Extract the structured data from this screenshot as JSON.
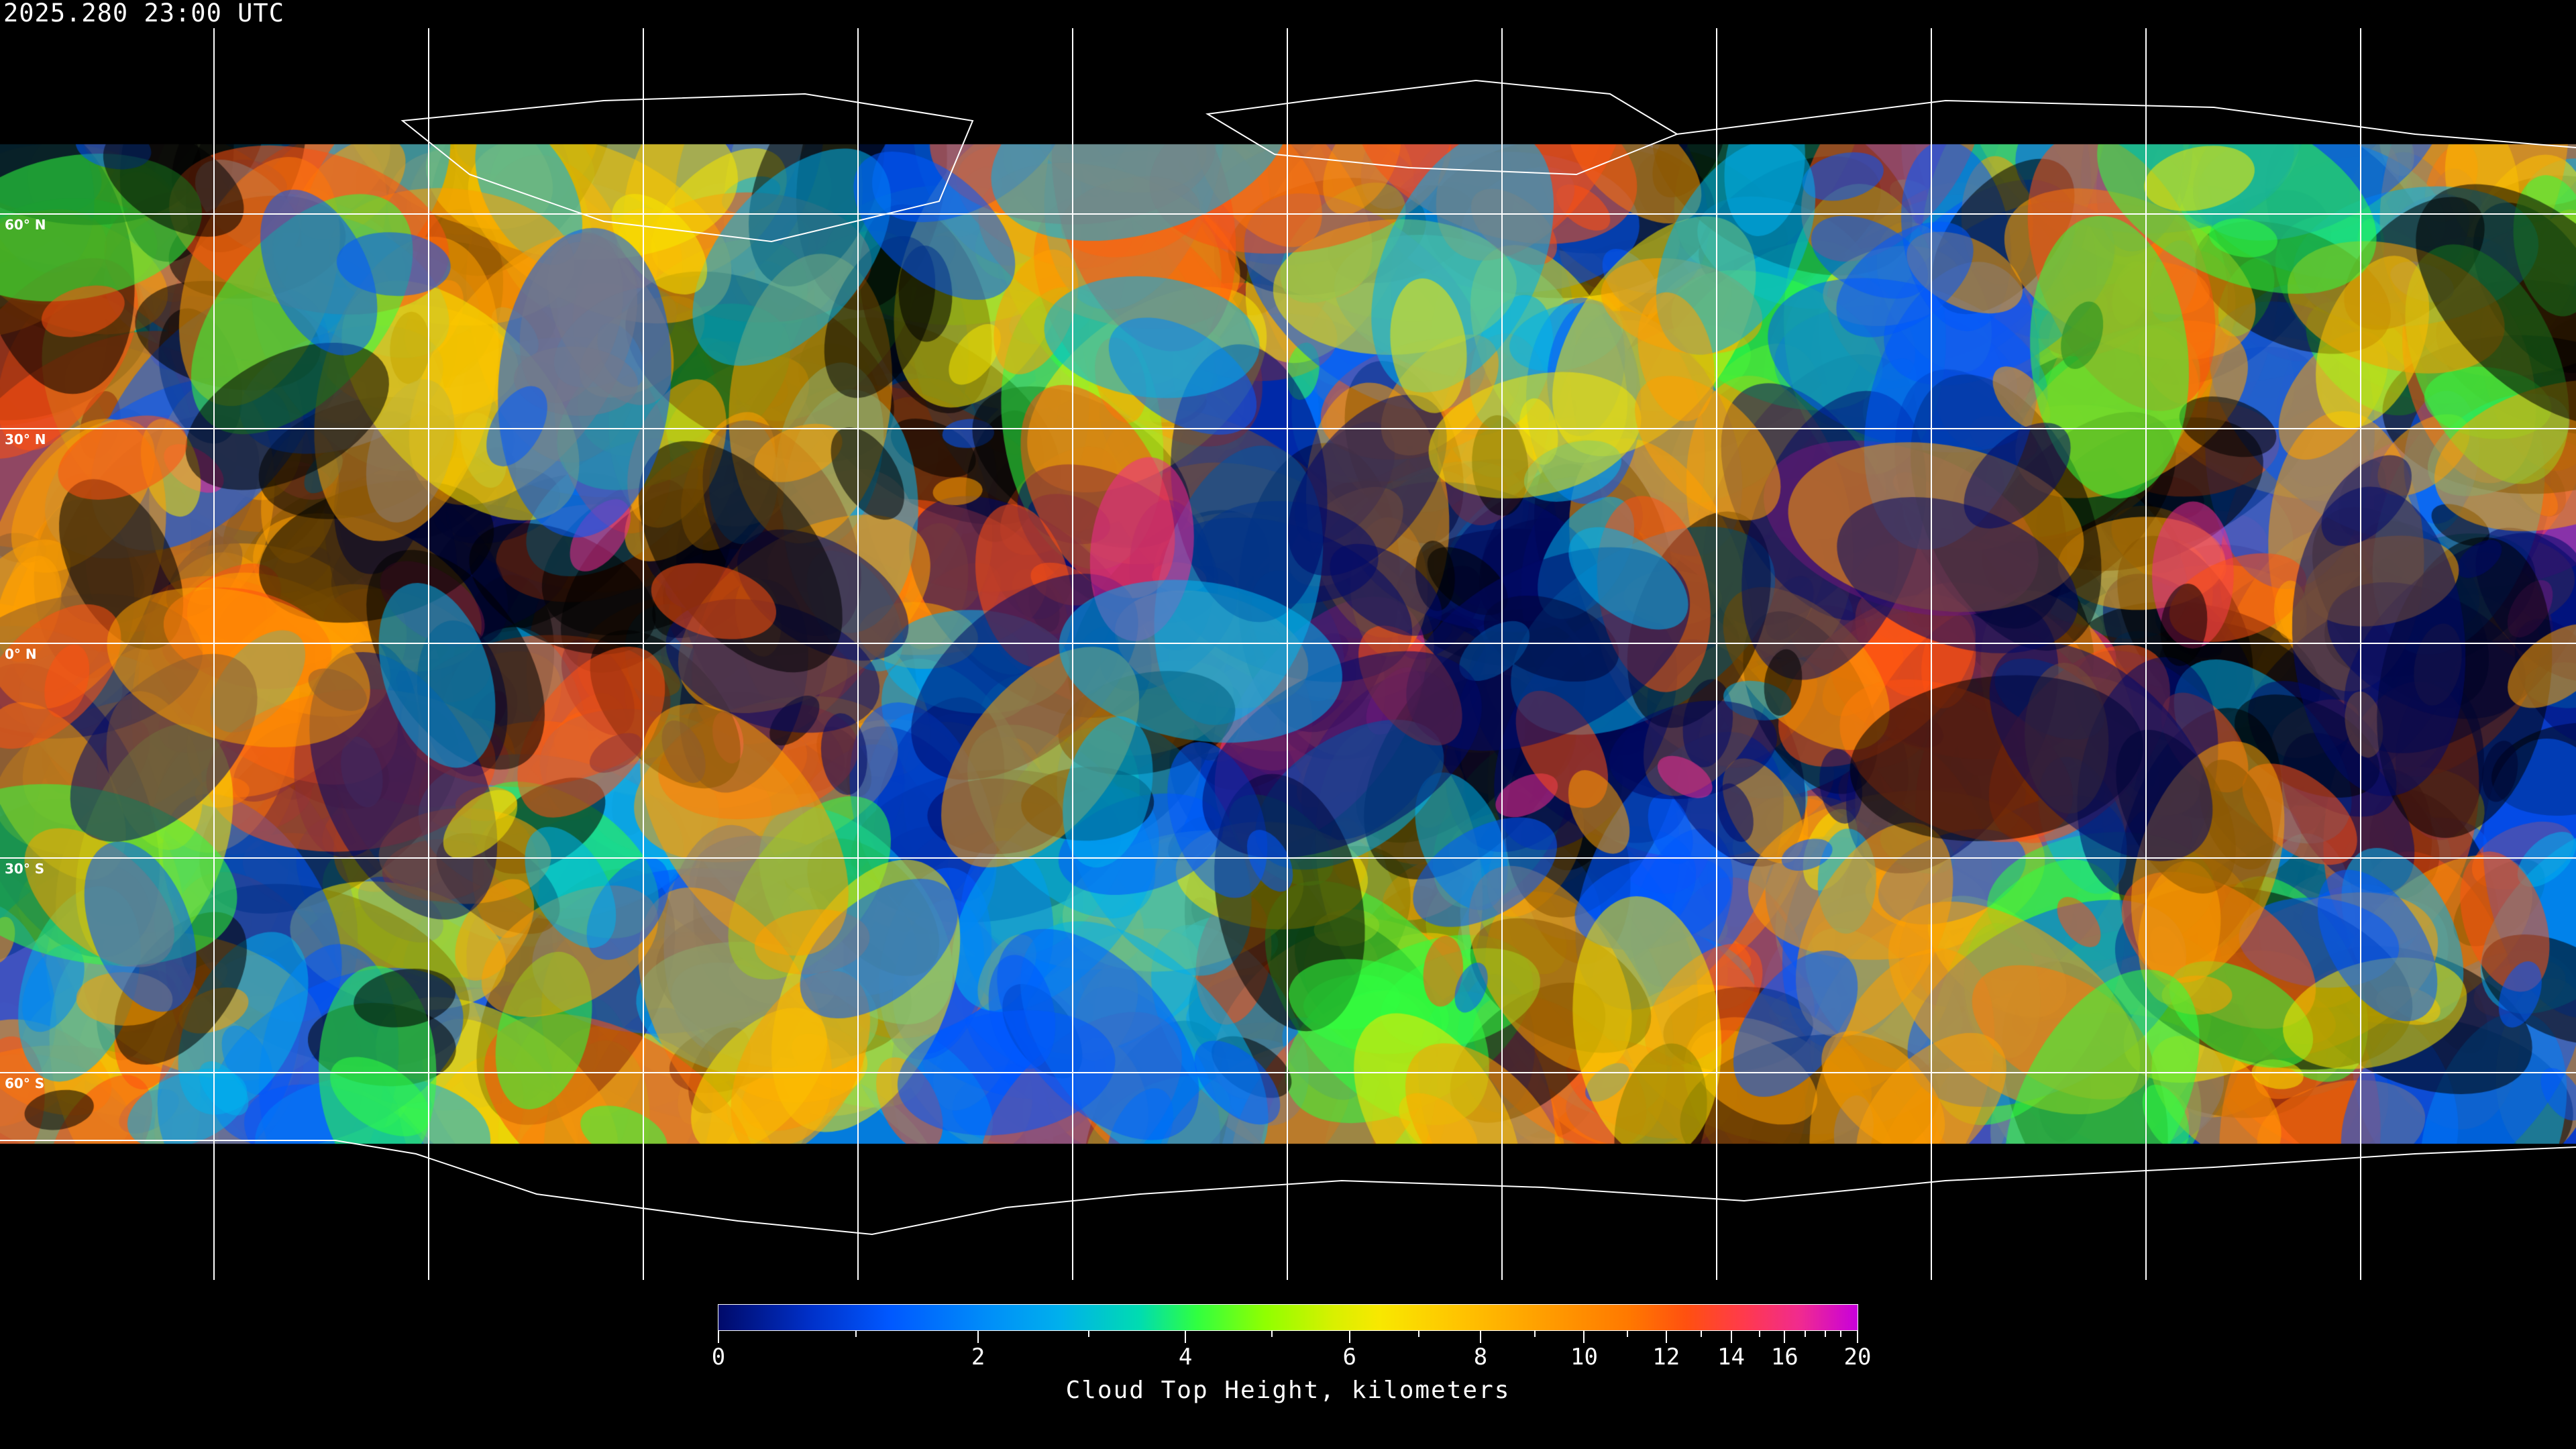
{
  "timestamp": "2025.280 23:00 UTC",
  "latitude_labels": [
    "60° N",
    "30° N",
    "0° N",
    "30° S",
    "60° S"
  ],
  "colorbar": {
    "title": "Cloud Top Height, kilometers",
    "min": 0,
    "max": 20,
    "major_ticks": [
      "0",
      "2",
      "4",
      "6",
      "8",
      "10",
      "12",
      "14",
      "16",
      "20"
    ],
    "minor_ticks": [
      1,
      3,
      5,
      7,
      9,
      11,
      13,
      15,
      17,
      18,
      19
    ],
    "colors": [
      "#000a6a",
      "#0058ff",
      "#00b0ec",
      "#30ff40",
      "#90ff00",
      "#f8e800",
      "#ffa000",
      "#ff5010",
      "#f02a90",
      "#c800dc"
    ]
  },
  "map": {
    "projection": "equirectangular",
    "gridlines": "30°",
    "coastlines_color": "#ffffff"
  }
}
